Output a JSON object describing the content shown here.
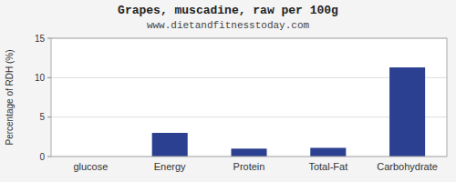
{
  "chart_data": {
    "type": "bar",
    "title": "Grapes, muscadine, raw per 100g",
    "subtitle": "www.dietandfitnesstoday.com",
    "categories": [
      "glucose",
      "Energy",
      "Protein",
      "Total-Fat",
      "Carbohydrate"
    ],
    "values": [
      0,
      3.0,
      1.0,
      1.1,
      11.3
    ],
    "color": "#2b4090",
    "ylabel": "Percentage of RDH (%)",
    "ylim": [
      0,
      15
    ],
    "yticks": [
      0,
      5,
      10,
      15
    ],
    "grid": true
  }
}
